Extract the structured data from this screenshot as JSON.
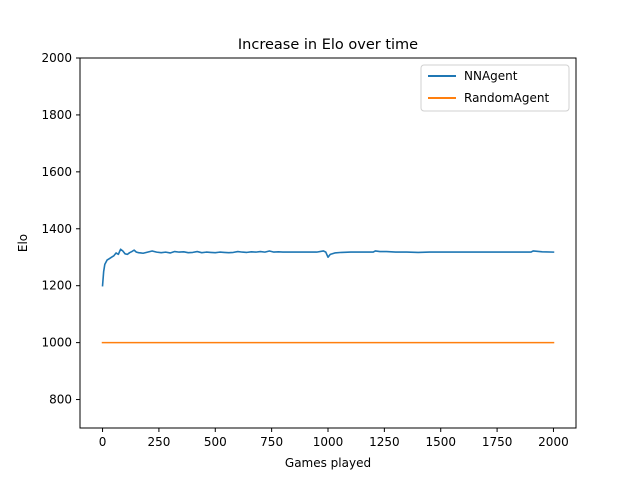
{
  "chart_data": {
    "type": "line",
    "title": "Increase in Elo over time",
    "xlabel": "Games played",
    "ylabel": "Elo",
    "xlim": [
      -100,
      2100
    ],
    "ylim": [
      700,
      2000
    ],
    "xticks": [
      0,
      250,
      500,
      750,
      1000,
      1250,
      1500,
      1750,
      2000
    ],
    "yticks": [
      800,
      1000,
      1200,
      1400,
      1600,
      1800,
      2000
    ],
    "grid": false,
    "legend_position": "top-right",
    "series": [
      {
        "name": "NNAgent",
        "color": "#1f77b4",
        "x": [
          0,
          5,
          10,
          20,
          30,
          40,
          50,
          60,
          70,
          80,
          90,
          100,
          110,
          120,
          130,
          140,
          150,
          160,
          170,
          180,
          200,
          220,
          240,
          260,
          280,
          300,
          320,
          340,
          360,
          380,
          400,
          420,
          440,
          460,
          480,
          500,
          520,
          540,
          560,
          580,
          600,
          620,
          640,
          660,
          680,
          700,
          720,
          740,
          760,
          780,
          800,
          850,
          900,
          950,
          980,
          990,
          1000,
          1010,
          1030,
          1060,
          1100,
          1150,
          1200,
          1210,
          1230,
          1260,
          1300,
          1350,
          1400,
          1450,
          1500,
          1550,
          1600,
          1650,
          1700,
          1750,
          1800,
          1850,
          1900,
          1910,
          1950,
          2000
        ],
        "y": [
          1200,
          1250,
          1275,
          1290,
          1295,
          1300,
          1305,
          1315,
          1310,
          1328,
          1322,
          1312,
          1310,
          1316,
          1320,
          1325,
          1318,
          1316,
          1315,
          1314,
          1318,
          1322,
          1318,
          1316,
          1318,
          1315,
          1320,
          1318,
          1319,
          1316,
          1317,
          1320,
          1316,
          1318,
          1317,
          1316,
          1318,
          1317,
          1316,
          1317,
          1320,
          1318,
          1317,
          1319,
          1318,
          1320,
          1318,
          1322,
          1318,
          1319,
          1318,
          1318,
          1318,
          1318,
          1322,
          1318,
          1300,
          1310,
          1315,
          1317,
          1318,
          1318,
          1318,
          1322,
          1320,
          1320,
          1318,
          1318,
          1317,
          1318,
          1318,
          1318,
          1318,
          1318,
          1318,
          1318,
          1318,
          1318,
          1318,
          1322,
          1319,
          1318
        ]
      },
      {
        "name": "RandomAgent",
        "color": "#ff7f0e",
        "x": [
          0,
          2000
        ],
        "y": [
          1000,
          1000
        ]
      }
    ]
  }
}
